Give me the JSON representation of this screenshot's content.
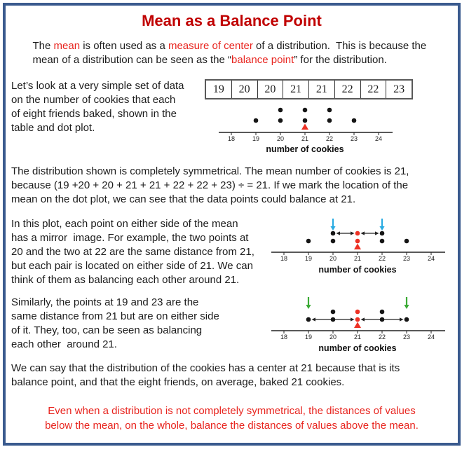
{
  "colors": {
    "frame_blue": "#3a5a8e",
    "title_red": "#c00000",
    "accent_red": "#e8251f",
    "marker_red": "#ed3124",
    "arrow_blue": "#29abe2",
    "arrow_green": "#3aaa35",
    "text_black": "#1c1c1c"
  },
  "title": "Mean as a Balance Point",
  "intro": {
    "lines": [
      [
        {
          "t": "The "
        },
        {
          "t": "mean",
          "c": "red"
        },
        {
          "t": " is often used as a "
        },
        {
          "t": "measure of center",
          "c": "red"
        },
        {
          "t": " of a distribution.  This is because the"
        }
      ],
      [
        {
          "t": "mean of a distribution can be seen as the “"
        },
        {
          "t": "balance point",
          "c": "red"
        },
        {
          "t": "” for the distribution."
        }
      ]
    ]
  },
  "section_cookies": {
    "lines": [
      "Let’s look at a very simple set of data",
      "on the number of cookies that each",
      "of eight friends baked, shown in the",
      "table and dot plot."
    ]
  },
  "table": {
    "values": [
      "19",
      "20",
      "20",
      "21",
      "21",
      "22",
      "22",
      "23"
    ]
  },
  "para_symmetrical": {
    "lines": [
      "The distribution shown is completely symmetrical. The mean number of cookies is 21,",
      "because (19 +20 + 20 + 21 + 21 + 22 + 22 + 23) ÷ = 21. If we mark the location of the",
      "mean on the dot plot, we can see that the data points could balance at 21."
    ]
  },
  "section_mirror": {
    "lines": [
      "In this plot, each point on either side of the mean",
      "has a mirror  image. For example, the two points at",
      "20 and the two at 22 are the same distance from 21,",
      "but each pair is located on either side of 21. We can",
      "think of them as balancing each other around 21."
    ]
  },
  "section_similar": {
    "lines": [
      "Similarly, the points at 19 and 23 are the",
      "same distance from 21 but are on either side",
      "of it. They, too, can be seen as balancing",
      "each other  around 21."
    ]
  },
  "para_center": {
    "lines": [
      "We can say that the distribution of the cookies has a center at 21 because that is its",
      "balance point, and that the eight friends, on average, baked 21 cookies."
    ]
  },
  "footer_note": {
    "lines": [
      "Even when a distribution is not completely symmetrical, the distances of values",
      "below the mean, on the whole, balance the distances of values above the mean."
    ]
  },
  "chart_data": [
    {
      "type": "dotplot",
      "name": "dotplot-basic",
      "kind": "basic",
      "dataset": [
        19,
        20,
        20,
        21,
        21,
        22,
        22,
        23
      ],
      "bottom_dots": [
        19,
        20,
        21,
        22,
        23
      ],
      "top_dots": [
        20,
        21,
        22
      ],
      "red_values": [],
      "mean_triangle": 21,
      "down_arrows": [],
      "spans": [],
      "ticks": [
        "18",
        "19",
        "20",
        "21",
        "22",
        "23",
        "24"
      ],
      "xlim": [
        18,
        24
      ],
      "xlabel": "number of cookies"
    },
    {
      "type": "dotplot",
      "name": "dotplot-mirror-pairs",
      "kind": "paired",
      "dataset": [
        19,
        20,
        20,
        21,
        21,
        22,
        22,
        23
      ],
      "bottom_dots": [
        19,
        20,
        21,
        22,
        23
      ],
      "top_dots": [
        20,
        21,
        22
      ],
      "red_values": [
        21
      ],
      "mean_triangle": 21,
      "down_arrows": [
        {
          "value": 20,
          "color": "#29abe2"
        },
        {
          "value": 22,
          "color": "#29abe2"
        }
      ],
      "spans": [
        {
          "from": 20,
          "to": 21,
          "row": "top"
        },
        {
          "from": 21,
          "to": 22,
          "row": "top"
        }
      ],
      "ticks": [
        "18",
        "19",
        "20",
        "21",
        "22",
        "23",
        "24"
      ],
      "xlim": [
        18,
        24
      ],
      "xlabel": "number of cookies"
    },
    {
      "type": "dotplot",
      "name": "dotplot-outer-pairs",
      "kind": "paired",
      "dataset": [
        19,
        20,
        20,
        21,
        21,
        22,
        22,
        23
      ],
      "bottom_dots": [
        19,
        20,
        21,
        22,
        23
      ],
      "top_dots": [
        20,
        21,
        22
      ],
      "red_values": [
        21
      ],
      "mean_triangle": 21,
      "down_arrows": [
        {
          "value": 19,
          "color": "#3aaa35"
        },
        {
          "value": 23,
          "color": "#3aaa35"
        }
      ],
      "spans": [
        {
          "from": 19,
          "to": 21,
          "row": "bottom"
        },
        {
          "from": 21,
          "to": 23,
          "row": "bottom"
        }
      ],
      "ticks": [
        "18",
        "19",
        "20",
        "21",
        "22",
        "23",
        "24"
      ],
      "xlim": [
        18,
        24
      ],
      "xlabel": "number of cookies"
    }
  ]
}
